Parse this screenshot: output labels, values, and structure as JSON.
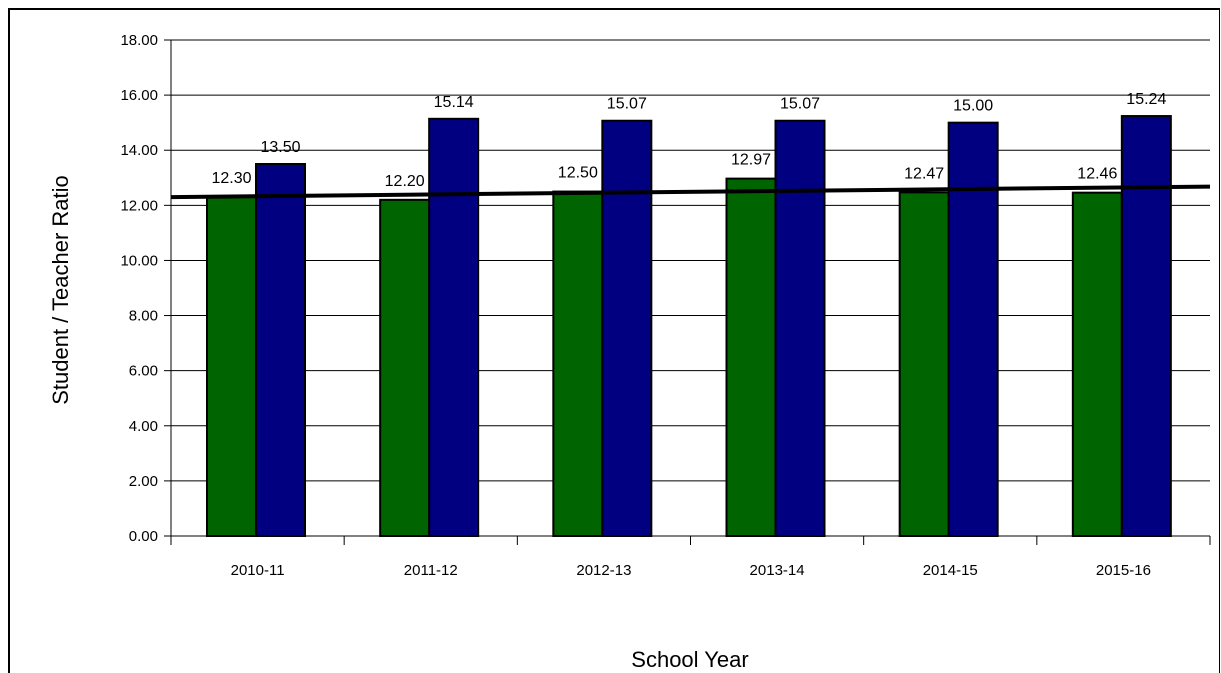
{
  "chart_data": {
    "type": "bar",
    "title": "",
    "xlabel": "School Year",
    "ylabel": "Student / Teacher Ratio",
    "ylim": [
      0,
      18
    ],
    "yticks": [
      0,
      2,
      4,
      6,
      8,
      10,
      12,
      14,
      16,
      18
    ],
    "ytick_labels": [
      "0.00",
      "2.00",
      "4.00",
      "6.00",
      "8.00",
      "10.00",
      "12.00",
      "14.00",
      "16.00",
      "18.00"
    ],
    "categories": [
      "2010-11",
      "2011-12",
      "2012-13",
      "2013-14",
      "2014-15",
      "2015-16"
    ],
    "series": [
      {
        "values": [
          12.3,
          12.2,
          12.5,
          12.97,
          12.47,
          12.46
        ],
        "labels": [
          "12.30",
          "12.20",
          "12.50",
          "12.97",
          "12.47",
          "12.46"
        ],
        "color": "#006400"
      },
      {
        "values": [
          13.5,
          15.14,
          15.07,
          15.07,
          15.0,
          15.24
        ],
        "labels": [
          "13.50",
          "15.14",
          "15.07",
          "15.07",
          "15.00",
          "15.24"
        ],
        "color": "#000080"
      }
    ],
    "trendline": {
      "start": 12.3,
      "end": 12.68,
      "color": "#000000"
    },
    "grid": true,
    "legend": "none"
  }
}
